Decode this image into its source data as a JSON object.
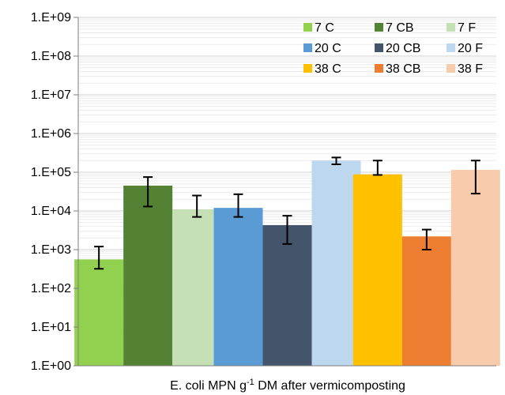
{
  "chart_data": {
    "type": "bar",
    "xlabel": {
      "before": "E. coli MPN g",
      "sup": "-1",
      "after": " DM after vermicomposting"
    },
    "ylabel": "",
    "yscale": "log",
    "ylim": [
      1,
      1000000000
    ],
    "yticks": [
      "1.E+00",
      "1.E+01",
      "1.E+02",
      "1.E+03",
      "1.E+04",
      "1.E+05",
      "1.E+06",
      "1.E+07",
      "1.E+08",
      "1.E+09"
    ],
    "grid": true,
    "legend_position": "top-right",
    "groups": [
      {
        "bars": [
          {
            "name": "7 C",
            "value": 560,
            "err_low": 320,
            "err_high": 1200,
            "color": "#92D050"
          },
          {
            "name": "7 CB",
            "value": 45000,
            "err_low": 13000,
            "err_high": 75000,
            "color": "#548235"
          },
          {
            "name": "7 F",
            "value": 11000,
            "err_low": 7000,
            "err_high": 25000,
            "color": "#C5E0B4"
          }
        ]
      },
      {
        "bars": [
          {
            "name": "20 C",
            "value": 12000,
            "err_low": 7000,
            "err_high": 27000,
            "color": "#5B9BD5"
          },
          {
            "name": "20 CB",
            "value": 4300,
            "err_low": 1400,
            "err_high": 7500,
            "color": "#44546A"
          },
          {
            "name": "20 F",
            "value": 200000,
            "err_low": 160000,
            "err_high": 240000,
            "color": "#BDD7EE"
          }
        ]
      },
      {
        "bars": [
          {
            "name": "38 C",
            "value": 88000,
            "err_low": 85000,
            "err_high": 200000,
            "color": "#FFC000"
          },
          {
            "name": "38 CB",
            "value": 2200,
            "err_low": 1000,
            "err_high": 3300,
            "color": "#ED7D31"
          },
          {
            "name": "38 F",
            "value": 115000,
            "err_low": 28000,
            "err_high": 200000,
            "color": "#F8CBAD"
          }
        ]
      }
    ],
    "legend": [
      {
        "label": "7 C",
        "color": "#92D050"
      },
      {
        "label": "7 CB",
        "color": "#548235"
      },
      {
        "label": "7 F",
        "color": "#C5E0B4"
      },
      {
        "label": "20 C",
        "color": "#5B9BD5"
      },
      {
        "label": "20 CB",
        "color": "#44546A"
      },
      {
        "label": "20 F",
        "color": "#BDD7EE"
      },
      {
        "label": "38 C",
        "color": "#FFC000"
      },
      {
        "label": "38 CB",
        "color": "#ED7D31"
      },
      {
        "label": "38 F",
        "color": "#F8CBAD"
      }
    ]
  }
}
